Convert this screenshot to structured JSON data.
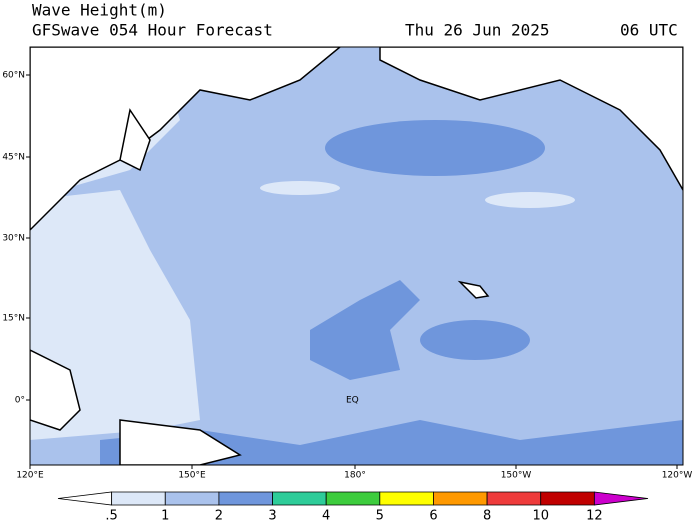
{
  "header": {
    "title": "Wave Height(m)",
    "subtitle": "GFSwave 054 Hour Forecast",
    "date": "Thu 26 Jun 2025",
    "time": "06 UTC"
  },
  "lat_labels": [
    "60°N",
    "45°N",
    "30°N",
    "15°N",
    "0°"
  ],
  "lon_labels": [
    "120°E",
    "150°E",
    "180°",
    "150°W",
    "120°W"
  ],
  "equator_label": "EQ",
  "colorbar": {
    "labels": [
      ".5",
      "1",
      "2",
      "3",
      "4",
      "5",
      "6",
      "8",
      "10",
      "12"
    ],
    "colors": [
      "#ffffff",
      "#dde8f8",
      "#aac2ec",
      "#6f96dc",
      "#2ecc99",
      "#3dcc3d",
      "#ffff00",
      "#ff9900",
      "#ee3b3b",
      "#c00000",
      "#cc00cc"
    ]
  }
}
